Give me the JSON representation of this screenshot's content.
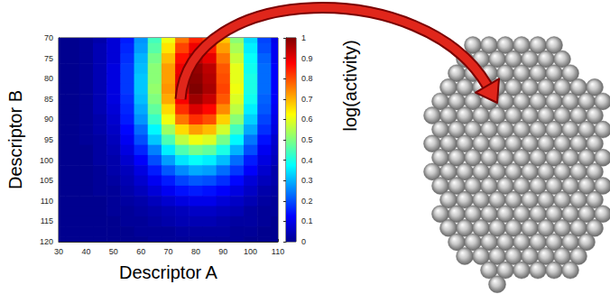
{
  "chart_data": {
    "type": "heatmap",
    "xlabel": "Descriptor A",
    "ylabel": "Descriptor B",
    "x": [
      30,
      35,
      40,
      45,
      50,
      55,
      60,
      65,
      70,
      75,
      80,
      85,
      90,
      95,
      100,
      105,
      110
    ],
    "y": [
      70,
      72.5,
      75,
      77.5,
      80,
      82.5,
      85,
      87.5,
      90,
      92.5,
      95,
      97.5,
      100,
      102.5,
      105,
      107.5,
      110,
      112.5,
      115,
      117.5,
      120
    ],
    "z": [
      [
        0,
        0,
        0.01,
        0.03,
        0.08,
        0.15,
        0.27,
        0.44,
        0.61,
        0.76,
        0.84,
        0.81,
        0.68,
        0.51,
        0.34,
        0.19,
        0.1
      ],
      [
        0,
        0,
        0.01,
        0.04,
        0.08,
        0.16,
        0.28,
        0.46,
        0.65,
        0.81,
        0.89,
        0.85,
        0.72,
        0.54,
        0.36,
        0.2,
        0.11
      ],
      [
        0,
        0,
        0.01,
        0.04,
        0.08,
        0.17,
        0.3,
        0.49,
        0.69,
        0.86,
        0.94,
        0.9,
        0.76,
        0.57,
        0.38,
        0.22,
        0.11
      ],
      [
        0,
        0,
        0.01,
        0.04,
        0.09,
        0.18,
        0.31,
        0.51,
        0.72,
        0.89,
        0.98,
        0.94,
        0.79,
        0.6,
        0.39,
        0.23,
        0.12
      ],
      [
        0,
        0,
        0.01,
        0.04,
        0.09,
        0.18,
        0.32,
        0.51,
        0.72,
        0.9,
        0.99,
        0.95,
        0.8,
        0.6,
        0.4,
        0.23,
        0.12
      ],
      [
        0,
        0,
        0.01,
        0.04,
        0.09,
        0.18,
        0.32,
        0.52,
        0.73,
        0.91,
        1.0,
        0.96,
        0.81,
        0.61,
        0.4,
        0.23,
        0.12
      ],
      [
        0,
        0,
        0.01,
        0.04,
        0.09,
        0.17,
        0.31,
        0.5,
        0.71,
        0.88,
        0.97,
        0.93,
        0.79,
        0.59,
        0.39,
        0.22,
        0.12
      ],
      [
        0,
        0,
        0.01,
        0.04,
        0.08,
        0.16,
        0.29,
        0.47,
        0.66,
        0.83,
        0.91,
        0.87,
        0.74,
        0.56,
        0.36,
        0.21,
        0.11
      ],
      [
        0,
        0,
        0.01,
        0.03,
        0.07,
        0.15,
        0.27,
        0.43,
        0.61,
        0.76,
        0.83,
        0.8,
        0.67,
        0.51,
        0.33,
        0.19,
        0.1
      ],
      [
        0,
        0,
        0.01,
        0.03,
        0.06,
        0.13,
        0.23,
        0.37,
        0.53,
        0.66,
        0.72,
        0.69,
        0.58,
        0.44,
        0.29,
        0.17,
        0.09
      ],
      [
        0,
        0,
        0.01,
        0.02,
        0.05,
        0.11,
        0.2,
        0.32,
        0.45,
        0.56,
        0.61,
        0.59,
        0.49,
        0.37,
        0.24,
        0.14,
        0.07
      ],
      [
        0,
        0,
        0,
        0.02,
        0.04,
        0.09,
        0.16,
        0.25,
        0.36,
        0.45,
        0.49,
        0.47,
        0.4,
        0.3,
        0.2,
        0.11,
        0.06
      ],
      [
        0,
        0,
        0,
        0.02,
        0.03,
        0.07,
        0.12,
        0.2,
        0.28,
        0.35,
        0.38,
        0.36,
        0.31,
        0.23,
        0.15,
        0.09,
        0.05
      ],
      [
        0,
        0,
        0,
        0.01,
        0.03,
        0.05,
        0.09,
        0.15,
        0.21,
        0.26,
        0.29,
        0.28,
        0.23,
        0.18,
        0.12,
        0.07,
        0.03
      ],
      [
        0,
        0,
        0,
        0.01,
        0.02,
        0.04,
        0.07,
        0.11,
        0.15,
        0.19,
        0.21,
        0.2,
        0.17,
        0.13,
        0.08,
        0.05,
        0.03
      ],
      [
        0,
        0,
        0,
        0.01,
        0.01,
        0.03,
        0.05,
        0.08,
        0.11,
        0.14,
        0.15,
        0.14,
        0.12,
        0.09,
        0.06,
        0.03,
        0.02
      ],
      [
        0,
        0,
        0,
        0,
        0.01,
        0.02,
        0.03,
        0.05,
        0.07,
        0.09,
        0.1,
        0.1,
        0.08,
        0.06,
        0.04,
        0.02,
        0.01
      ],
      [
        0,
        0,
        0,
        0,
        0.01,
        0.01,
        0.02,
        0.03,
        0.04,
        0.05,
        0.06,
        0.06,
        0.05,
        0.04,
        0.02,
        0.01,
        0.01
      ],
      [
        0,
        0,
        0,
        0,
        0,
        0.01,
        0.01,
        0.02,
        0.03,
        0.04,
        0.04,
        0.04,
        0.03,
        0.02,
        0.02,
        0.01,
        0
      ],
      [
        0,
        0,
        0,
        0,
        0,
        0,
        0.01,
        0.01,
        0.01,
        0.02,
        0.02,
        0.02,
        0.02,
        0.01,
        0.01,
        0,
        0
      ],
      [
        0,
        0,
        0,
        0,
        0,
        0,
        0,
        0.01,
        0.01,
        0.01,
        0.01,
        0.01,
        0.01,
        0.01,
        0,
        0,
        0
      ]
    ],
    "xlim": [
      30,
      110
    ],
    "xticks": [
      30,
      40,
      50,
      60,
      70,
      80,
      90,
      100,
      110
    ],
    "ylim": [
      70,
      120
    ],
    "yticks": [
      70,
      75,
      80,
      85,
      90,
      95,
      100,
      105,
      110,
      115,
      120
    ],
    "colorbar": {
      "label": "log(activity)",
      "range": [
        0,
        1
      ],
      "ticks": [
        0,
        0.1,
        0.2,
        0.3,
        0.4,
        0.5,
        0.6,
        0.7,
        0.8,
        0.9,
        1
      ]
    }
  }
}
